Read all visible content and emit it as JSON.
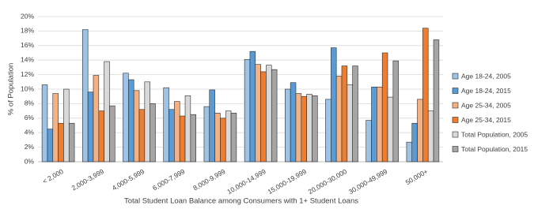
{
  "chart_data": {
    "type": "bar",
    "x_label": "Total Student Loan Balance among Consumers with 1+ Student Loans",
    "y_label": "% of Population",
    "categories": [
      "< 2,000",
      "2,000-3,999",
      "4,000-5,999",
      "6,000-7,999",
      "8,000-9,999",
      "10,000-14,999",
      "15,000-19,999",
      "20,000-30,000",
      "30,000-49,999",
      "50,000+"
    ],
    "series": [
      {
        "name": "Age 18-24, 2005",
        "color": "#9dc3e6",
        "values": [
          10.6,
          18.2,
          12.2,
          10.2,
          7.6,
          14.1,
          10.0,
          8.6,
          5.7,
          2.7
        ]
      },
      {
        "name": "Age 18-24, 2015",
        "color": "#5b9bd5",
        "values": [
          4.5,
          9.6,
          11.3,
          7.2,
          9.9,
          15.2,
          10.9,
          15.7,
          10.3,
          5.3
        ]
      },
      {
        "name": "Age 25-34, 2005",
        "color": "#f4b183",
        "values": [
          9.4,
          11.9,
          9.8,
          8.3,
          6.7,
          13.4,
          9.4,
          11.8,
          10.3,
          8.6
        ]
      },
      {
        "name": "Age 25-34, 2015",
        "color": "#ed7d31",
        "values": [
          5.3,
          7.0,
          7.2,
          6.3,
          6.0,
          12.4,
          9.0,
          13.2,
          15.0,
          18.4
        ]
      },
      {
        "name": "Total Population, 2005",
        "color": "#d9d9d9",
        "values": [
          10.0,
          13.8,
          11.0,
          9.1,
          7.0,
          13.3,
          9.3,
          10.6,
          8.9,
          7.0
        ]
      },
      {
        "name": "Total Population, 2015",
        "color": "#a5a5a5",
        "values": [
          5.3,
          7.7,
          8.0,
          6.5,
          6.7,
          12.7,
          9.1,
          13.2,
          13.9,
          16.8
        ]
      }
    ],
    "ylim": [
      0,
      20
    ],
    "yticks": [
      {
        "value": 0,
        "label": "0%"
      },
      {
        "value": 2,
        "label": "2%"
      },
      {
        "value": 4,
        "label": "4%"
      },
      {
        "value": 6,
        "label": "6%"
      },
      {
        "value": 8,
        "label": "8%"
      },
      {
        "value": 10,
        "label": "10%"
      },
      {
        "value": 12,
        "label": "12%"
      },
      {
        "value": 14,
        "label": "14%"
      },
      {
        "value": 16,
        "label": "16%"
      },
      {
        "value": 18,
        "label": "18%"
      },
      {
        "value": 20,
        "label": "20%"
      }
    ],
    "grid": true,
    "legend": "right"
  }
}
